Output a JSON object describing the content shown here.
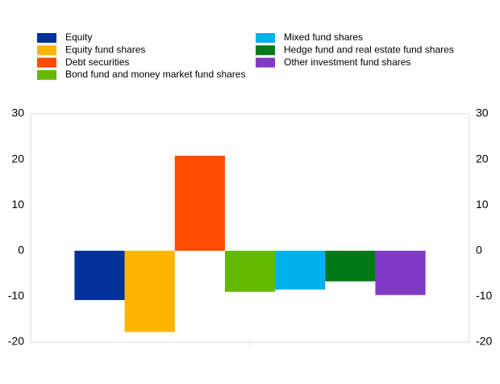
{
  "chart_data": {
    "type": "bar",
    "categories": [
      null
    ],
    "series": [
      {
        "name": "Equity",
        "color": "#003299",
        "values": [
          -10.8
        ]
      },
      {
        "name": "Equity fund shares",
        "color": "#ffb400",
        "values": [
          -17.8
        ]
      },
      {
        "name": "Debt securities",
        "color": "#ff4b00",
        "values": [
          20.8
        ]
      },
      {
        "name": "Bond fund and money market fund shares",
        "color": "#65b800",
        "values": [
          -9.0
        ]
      },
      {
        "name": "Mixed fund shares",
        "color": "#00b1ea",
        "values": [
          -8.5
        ]
      },
      {
        "name": "Hedge fund and real estate fund shares",
        "color": "#007816",
        "values": [
          -6.7
        ]
      },
      {
        "name": "Other investment fund shares",
        "color": "#8139c6",
        "values": [
          -9.7
        ]
      }
    ],
    "ylim": [
      -20,
      30
    ],
    "yticks": [
      -20,
      -10,
      0,
      10,
      20,
      30
    ],
    "y2lim": [
      -20,
      30
    ],
    "y2ticks": [
      -20,
      -10,
      0,
      10,
      20,
      30
    ],
    "grid": false,
    "legend": "top"
  }
}
